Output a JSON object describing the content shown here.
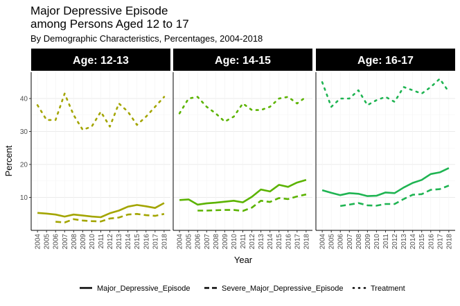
{
  "chart_data": {
    "type": "line",
    "title_line1": "Major Depressive Episode",
    "title_line2": "among Persons Aged 12 to 17",
    "subtitle": "By Demographic Characteristics, Percentages, 2004-2018",
    "xlabel": "Year",
    "ylabel": "Percent",
    "ylim": [
      0,
      48
    ],
    "yticks": [
      "10",
      "20",
      "30",
      "40"
    ],
    "ytick_values": [
      10,
      20,
      30,
      40
    ],
    "x": [
      2004,
      2005,
      2006,
      2007,
      2008,
      2009,
      2010,
      2011,
      2012,
      2013,
      2014,
      2015,
      2016,
      2017,
      2018
    ],
    "xtick_labels": [
      "2004",
      "2005",
      "2006",
      "2007",
      "2008",
      "2009",
      "2010",
      "2011",
      "2012",
      "2013",
      "2014",
      "2015",
      "2016",
      "2017",
      "2018"
    ],
    "grid": true,
    "legend_position": "bottom",
    "legend": [
      "Major_Depressive_Episode",
      "Severe_Major_Depressive_Episode",
      "Treatment"
    ],
    "panels": [
      {
        "label": "Age: 12-13",
        "color": "#a3a500",
        "series": [
          {
            "name": "Major_Depressive_Episode",
            "style": "solid",
            "values": [
              5.3,
              5.1,
              4.8,
              4.2,
              4.8,
              4.5,
              4.2,
              4.0,
              5.2,
              6.0,
              7.2,
              7.7,
              7.3,
              6.8,
              8.3
            ]
          },
          {
            "name": "Severe_Major_Depressive_Episode",
            "style": "dashed",
            "values": [
              null,
              null,
              2.6,
              2.4,
              3.4,
              3.0,
              2.8,
              2.7,
              3.6,
              3.9,
              4.8,
              5.0,
              4.6,
              4.4,
              5.0
            ]
          },
          {
            "name": "Treatment",
            "style": "dotted",
            "values": [
              38.0,
              33.5,
              33.5,
              41.5,
              35.0,
              30.5,
              31.5,
              36.0,
              31.5,
              38.5,
              36.0,
              32.0,
              34.5,
              37.5,
              40.5
            ]
          }
        ]
      },
      {
        "label": "Age: 14-15",
        "color": "#5bb300",
        "series": [
          {
            "name": "Major_Depressive_Episode",
            "style": "solid",
            "values": [
              9.2,
              9.4,
              7.8,
              8.2,
              8.4,
              8.7,
              9.0,
              8.5,
              10.2,
              12.4,
              11.8,
              13.8,
              13.2,
              14.5,
              15.3
            ]
          },
          {
            "name": "Severe_Major_Depressive_Episode",
            "style": "dashed",
            "values": [
              null,
              null,
              6.0,
              6.0,
              6.1,
              6.2,
              6.2,
              5.9,
              6.9,
              9.0,
              8.6,
              9.8,
              9.5,
              10.3,
              10.9
            ]
          },
          {
            "name": "Treatment",
            "style": "dotted",
            "values": [
              35.5,
              40.0,
              40.5,
              37.5,
              35.5,
              33.0,
              34.5,
              38.5,
              36.5,
              36.5,
              37.5,
              40.0,
              40.5,
              38.5,
              40.5
            ]
          }
        ]
      },
      {
        "label": "Age: 16-17",
        "color": "#1fb452",
        "series": [
          {
            "name": "Major_Depressive_Episode",
            "style": "solid",
            "values": [
              12.2,
              11.4,
              10.7,
              11.3,
              11.1,
              10.4,
              10.5,
              11.5,
              11.3,
              13.0,
              14.4,
              15.3,
              17.1,
              17.6,
              18.9
            ]
          },
          {
            "name": "Severe_Major_Depressive_Episode",
            "style": "dashed",
            "values": [
              null,
              null,
              7.4,
              7.8,
              8.3,
              7.6,
              7.5,
              8.0,
              8.0,
              9.5,
              10.8,
              11.0,
              12.3,
              12.5,
              13.6
            ]
          },
          {
            "name": "Treatment",
            "style": "dotted",
            "values": [
              45.0,
              37.5,
              40.0,
              40.0,
              42.5,
              38.0,
              39.5,
              40.5,
              39.0,
              43.5,
              42.5,
              41.5,
              43.5,
              46.0,
              42.0
            ]
          }
        ]
      }
    ]
  }
}
